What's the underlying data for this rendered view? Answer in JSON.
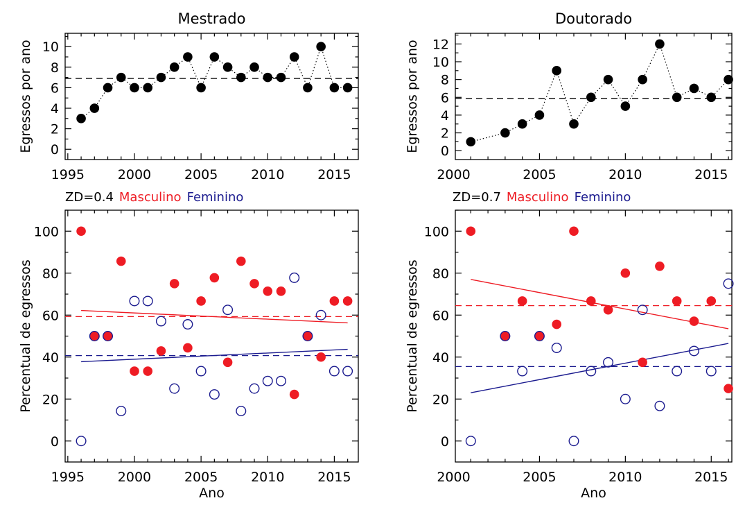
{
  "colors": {
    "red": "#ee1c24",
    "blue": "#1b1b8f",
    "black": "#000000"
  },
  "chart_data": [
    {
      "type": "scatter",
      "title": "Mestrado",
      "xlabel": "",
      "ylabel": "Egressos por ano",
      "xlim": [
        1994.8,
        2016.8
      ],
      "ylim": [
        -1,
        11.3
      ],
      "xticks": [
        1995,
        2000,
        2005,
        2010,
        2015
      ],
      "yticks": [
        0,
        2,
        4,
        6,
        8,
        10
      ],
      "series": [
        {
          "x": [
            1996,
            1997,
            1998,
            1999,
            2000,
            2001,
            2002,
            2003,
            2004,
            2005,
            2006,
            2007,
            2008,
            2009,
            2010,
            2011,
            2012,
            2013,
            2014,
            2015,
            2016
          ],
          "values": [
            3,
            4,
            6,
            7,
            6,
            6,
            7,
            8,
            9,
            6,
            9,
            8,
            7,
            8,
            7,
            7,
            9,
            6,
            10,
            6,
            6
          ],
          "color": "#000000",
          "marker": "filled-circle",
          "line": "dotted"
        }
      ],
      "mean_line": 6.9,
      "annotation": {
        "zd": "ZD=0.4",
        "male": "Masculino",
        "female": "Feminino"
      }
    },
    {
      "type": "scatter",
      "title": "Doutorado",
      "xlabel": "",
      "ylabel": "Egressos por ano",
      "xlim": [
        2000.1,
        2016.2
      ],
      "ylim": [
        -1,
        13.2
      ],
      "xticks": [
        2000,
        2005,
        2010,
        2015
      ],
      "yticks": [
        0,
        2,
        4,
        6,
        8,
        10,
        12
      ],
      "series": [
        {
          "x": [
            2001,
            2003,
            2004,
            2005,
            2006,
            2007,
            2008,
            2009,
            2010,
            2011,
            2012,
            2013,
            2014,
            2015,
            2016
          ],
          "values": [
            1,
            2,
            3,
            4,
            9,
            3,
            6,
            8,
            5,
            8,
            12,
            6,
            7,
            6,
            8
          ],
          "color": "#000000",
          "marker": "filled-circle",
          "line": "dotted"
        }
      ],
      "mean_line": 5.85,
      "annotation": {
        "zd": "ZD=0.7",
        "male": "Masculino",
        "female": "Feminino"
      }
    },
    {
      "type": "scatter",
      "title": "",
      "xlabel": "Ano",
      "ylabel": "Percentual de egressos",
      "xlim": [
        1994.8,
        2016.8
      ],
      "ylim": [
        -10,
        110
      ],
      "xticks": [
        1995,
        2000,
        2005,
        2010,
        2015
      ],
      "yticks": [
        0,
        20,
        40,
        60,
        80,
        100
      ],
      "series": [
        {
          "name": "Masculino",
          "x": [
            1996,
            1997,
            1998,
            1999,
            2000,
            2001,
            2002,
            2003,
            2004,
            2005,
            2006,
            2007,
            2008,
            2009,
            2010,
            2011,
            2012,
            2013,
            2014,
            2015,
            2016
          ],
          "values": [
            100,
            50,
            50,
            85.7,
            33.3,
            33.3,
            42.9,
            75,
            44.4,
            66.7,
            77.8,
            37.5,
            85.7,
            75,
            71.4,
            71.4,
            22.2,
            50,
            40,
            66.7,
            66.7
          ],
          "color": "#ee1c24",
          "marker": "filled-circle"
        },
        {
          "name": "Feminino",
          "x": [
            1996,
            1997,
            1998,
            1999,
            2000,
            2001,
            2002,
            2003,
            2004,
            2005,
            2006,
            2007,
            2008,
            2009,
            2010,
            2011,
            2012,
            2013,
            2014,
            2015,
            2016
          ],
          "values": [
            0,
            50,
            50,
            14.3,
            66.7,
            66.7,
            57.1,
            25,
            55.6,
            33.3,
            22.2,
            62.5,
            14.3,
            25,
            28.6,
            28.6,
            77.8,
            50,
            60,
            33.3,
            33.3
          ],
          "color": "#1b1b8f",
          "marker": "open-circle"
        }
      ],
      "fit_lines": [
        {
          "color": "#ee1c24",
          "x": [
            1996,
            2016
          ],
          "y": [
            62.2,
            56.3
          ]
        },
        {
          "color": "#1b1b8f",
          "x": [
            1996,
            2016
          ],
          "y": [
            37.8,
            43.7
          ]
        }
      ],
      "mean_lines": [
        {
          "color": "#ee1c24",
          "y": 59.3
        },
        {
          "color": "#1b1b8f",
          "y": 40.7
        }
      ]
    },
    {
      "type": "scatter",
      "title": "",
      "xlabel": "Ano",
      "ylabel": "Percentual de egressos",
      "xlim": [
        2000.1,
        2016.2
      ],
      "ylim": [
        -10,
        110
      ],
      "xticks": [
        2000,
        2005,
        2010,
        2015
      ],
      "yticks": [
        0,
        20,
        40,
        60,
        80,
        100
      ],
      "series": [
        {
          "name": "Masculino",
          "x": [
            2001,
            2003,
            2004,
            2005,
            2006,
            2007,
            2008,
            2009,
            2010,
            2011,
            2012,
            2013,
            2014,
            2015,
            2016
          ],
          "values": [
            100,
            50,
            66.7,
            50,
            55.6,
            100,
            66.7,
            62.5,
            80,
            37.5,
            83.3,
            66.7,
            57.1,
            66.7,
            25
          ],
          "color": "#ee1c24",
          "marker": "filled-circle"
        },
        {
          "name": "Feminino",
          "x": [
            2001,
            2003,
            2004,
            2005,
            2006,
            2007,
            2008,
            2009,
            2010,
            2011,
            2012,
            2013,
            2014,
            2015,
            2016
          ],
          "values": [
            0,
            50,
            33.3,
            50,
            44.4,
            0,
            33.3,
            37.5,
            20,
            62.5,
            16.7,
            33.3,
            42.9,
            33.3,
            75
          ],
          "color": "#1b1b8f",
          "marker": "open-circle"
        }
      ],
      "fit_lines": [
        {
          "color": "#ee1c24",
          "x": [
            2001,
            2016
          ],
          "y": [
            77,
            53.5
          ]
        },
        {
          "color": "#1b1b8f",
          "x": [
            2001,
            2016
          ],
          "y": [
            23,
            46.5
          ]
        }
      ],
      "mean_lines": [
        {
          "color": "#ee1c24",
          "y": 64.5
        },
        {
          "color": "#1b1b8f",
          "y": 35.5
        }
      ]
    }
  ]
}
